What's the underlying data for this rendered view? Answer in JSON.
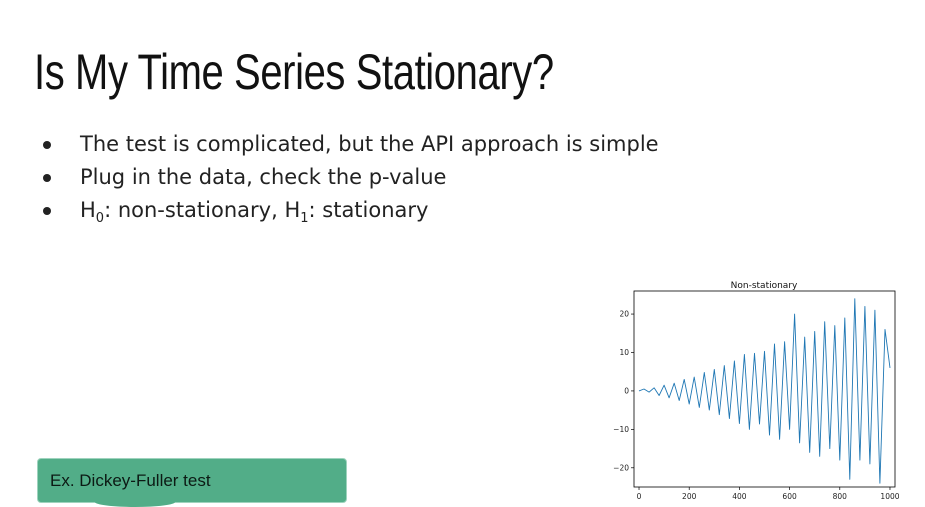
{
  "slide": {
    "title": "Is My Time Series Stationary?",
    "bullets": [
      {
        "text": "The test is complicated, but the API approach is simple"
      },
      {
        "text": "Plug in the data, check the p-value"
      },
      {
        "h0": "H",
        "h0_sub": "0",
        "h0_text": ": non-stationary, ",
        "h1": "H",
        "h1_sub": "1",
        "h1_text": ": stationary"
      }
    ],
    "callout": "Ex. Dickey-Fuller test"
  },
  "colors": {
    "series": "#1f77b4",
    "callout_bg": "#52ad88"
  },
  "chart_data": {
    "type": "line",
    "title": "Non-stationary",
    "xlabel": "",
    "ylabel": "",
    "xlim": [
      -20,
      1020
    ],
    "ylim": [
      -25,
      26
    ],
    "xticks": [
      0,
      200,
      400,
      600,
      800,
      1000
    ],
    "yticks": [
      -20,
      -10,
      0,
      10,
      20
    ],
    "ytick_labels": [
      "−20",
      "−10",
      "0",
      "10",
      "20"
    ],
    "grid": false,
    "series": [
      {
        "points": [
          [
            0,
            0
          ],
          [
            20,
            0.5
          ],
          [
            40,
            -0.3
          ],
          [
            60,
            0.8
          ],
          [
            80,
            -1.2
          ],
          [
            100,
            1.5
          ],
          [
            120,
            -1.8
          ],
          [
            140,
            2
          ],
          [
            160,
            -2.5
          ],
          [
            180,
            3
          ],
          [
            200,
            -3.4
          ],
          [
            220,
            3.6
          ],
          [
            240,
            -4.3
          ],
          [
            260,
            4.8
          ],
          [
            280,
            -5
          ],
          [
            300,
            5.6
          ],
          [
            320,
            -6.2
          ],
          [
            340,
            6.6
          ],
          [
            360,
            -7.2
          ],
          [
            380,
            7.8
          ],
          [
            400,
            -8.5
          ],
          [
            420,
            9.5
          ],
          [
            440,
            -10
          ],
          [
            460,
            9.8
          ],
          [
            480,
            -8.6
          ],
          [
            500,
            10.3
          ],
          [
            520,
            -11.5
          ],
          [
            540,
            12.2
          ],
          [
            560,
            -12.6
          ],
          [
            580,
            12.8
          ],
          [
            600,
            -10
          ],
          [
            620,
            20
          ],
          [
            640,
            -13.5
          ],
          [
            660,
            14
          ],
          [
            680,
            -16
          ],
          [
            700,
            15.5
          ],
          [
            720,
            -17
          ],
          [
            740,
            18
          ],
          [
            760,
            -15
          ],
          [
            780,
            17
          ],
          [
            800,
            -18
          ],
          [
            820,
            19
          ],
          [
            840,
            -23
          ],
          [
            860,
            24
          ],
          [
            880,
            -18
          ],
          [
            900,
            22
          ],
          [
            920,
            -19
          ],
          [
            940,
            21
          ],
          [
            960,
            -24
          ],
          [
            980,
            16
          ],
          [
            1000,
            6
          ]
        ]
      }
    ]
  }
}
